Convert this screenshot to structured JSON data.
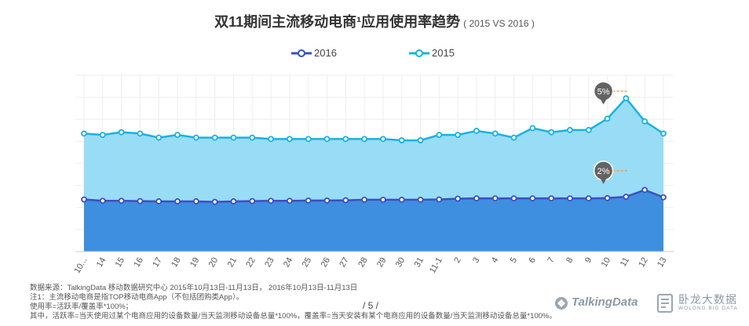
{
  "title": {
    "main": "双11期间主流移动电商¹应用使用率趋势",
    "sub": "( 2015 VS 2016 )"
  },
  "legend": {
    "items": [
      {
        "label": "2016",
        "color": "#3b4fc4"
      },
      {
        "label": "2015",
        "color": "#15b3e6"
      }
    ]
  },
  "chart_data": {
    "type": "area",
    "title": "双11期间主流移动电商¹应用使用率趋势",
    "subtitle": "( 2015 VS 2016 )",
    "x": [
      "10-13",
      "14",
      "15",
      "16",
      "17",
      "18",
      "19",
      "20",
      "21",
      "22",
      "23",
      "24",
      "25",
      "26",
      "27",
      "28",
      "29",
      "30",
      "31",
      "11-1",
      "2",
      "3",
      "4",
      "5",
      "6",
      "7",
      "8",
      "9",
      "10",
      "11",
      "12",
      "13"
    ],
    "x_tick_labels": [
      "10...",
      "14",
      "15",
      "16",
      "17",
      "18",
      "19",
      "20",
      "21",
      "22",
      "23",
      "24",
      "25",
      "26",
      "27",
      "28",
      "29",
      "30",
      "31",
      "11-1",
      "2",
      "3",
      "4",
      "5",
      "6",
      "7",
      "8",
      "9",
      "10",
      "11",
      "12",
      "13"
    ],
    "ylim": [
      0,
      6.5
    ],
    "y_axis_labels_shown": false,
    "grid": true,
    "legend_position": "top-center",
    "series": [
      {
        "name": "2016",
        "color": "#3b4fc4",
        "fill": "#3e8fdf",
        "values": [
          1.92,
          1.87,
          1.87,
          1.86,
          1.85,
          1.85,
          1.85,
          1.83,
          1.85,
          1.86,
          1.87,
          1.87,
          1.88,
          1.88,
          1.89,
          1.91,
          1.91,
          1.91,
          1.91,
          1.92,
          1.95,
          1.96,
          1.96,
          1.96,
          1.96,
          1.96,
          1.96,
          1.96,
          1.97,
          2.02,
          2.27,
          2.0
        ]
      },
      {
        "name": "2015",
        "color": "#15b3e6",
        "fill": "#99dcf6",
        "values": [
          4.35,
          4.3,
          4.4,
          4.35,
          4.2,
          4.3,
          4.2,
          4.2,
          4.2,
          4.2,
          4.15,
          4.15,
          4.15,
          4.15,
          4.15,
          4.15,
          4.15,
          4.1,
          4.1,
          4.3,
          4.3,
          4.45,
          4.35,
          4.2,
          4.55,
          4.4,
          4.48,
          4.48,
          4.9,
          5.65,
          4.8,
          4.35
        ]
      }
    ],
    "annotations": [
      {
        "label": "5%",
        "series": "2015",
        "x": "10"
      },
      {
        "label": "2%",
        "series": "2016",
        "x": "10"
      }
    ]
  },
  "footer": {
    "source": "数据来源：TalkingData 移动数据研究中心  2015年10月13日-11月13日， 2016年10月13日-11月13日",
    "note1": "注1：主流移动电商是指TOP移动电商App（不包括团购类App）。",
    "note2": "使用率=活跃率/覆盖率*100%；",
    "note3": "其中，活跃率=当天使用过某个电商应用的设备数量/当天监测移动设备总量*100%，覆盖率=当天安装有某个电商应用的设备数量/当天监测移动设备总量*100%。"
  },
  "page_number": "/ 5 /",
  "logos": {
    "talkingdata": "TalkingData",
    "wolong_cn": "卧龙大数据",
    "wolong_en": "WOLONG BIG DATA"
  }
}
